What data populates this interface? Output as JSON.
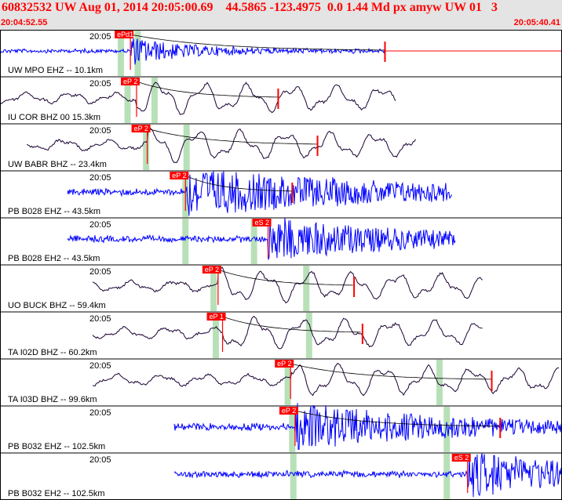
{
  "header": {
    "title": "60832532 UW Aug 01, 2014 20:05:00.69    44.5865 -123.4975  0.0 1.44 Md px amyw UW 01   3",
    "start_time": "20:04:52.55",
    "end_time": "20:05:40.41"
  },
  "colors": {
    "header_bg": "#e4e4e4",
    "pick_red": "#ff0000",
    "window_green": "#b8e0b8",
    "trace_blue": "#0000ff",
    "trace_dark": "#1a0033"
  },
  "channels": [
    {
      "time_label": "20:05",
      "station": "UW MPO EHZ -- 10.1km",
      "trace": "blue",
      "amp": 0.35,
      "start_s": 0.0,
      "end_s": 0.685,
      "picks": [
        {
          "label": "ePd1",
          "pos": 0.232
        }
      ],
      "windows": [
        0.215,
        0.245
      ],
      "coda_end": 0.685,
      "decay": 0.1
    },
    {
      "time_label": "20:05",
      "station": "IU COR BHZ 00 15.3km",
      "trace": "dark",
      "amp": 0.45,
      "start_s": 0.0,
      "end_s": 0.705,
      "picks": [
        {
          "label": "eP 2",
          "pos": 0.243
        }
      ],
      "windows": [
        0.227,
        0.275
      ],
      "coda_end": 0.495,
      "decay": 0.3
    },
    {
      "time_label": "20:05",
      "station": "UW BABR BHZ -- 23.4km",
      "trace": "dark",
      "amp": 0.45,
      "start_s": 0.048,
      "end_s": 0.74,
      "picks": [
        {
          "label": "eP 2",
          "pos": 0.262
        }
      ],
      "windows": [
        0.26,
        0.332
      ],
      "coda_end": 0.565,
      "decay": 0.3
    },
    {
      "time_label": "20:05",
      "station": "PB B028 EHZ -- 43.5km",
      "trace": "blue",
      "amp": 0.6,
      "start_s": 0.12,
      "end_s": 0.805,
      "picks": [
        {
          "label": "eP 2",
          "pos": 0.33
        }
      ],
      "windows": [
        0.33
      ],
      "coda_end": 0.52,
      "decay": 0.35
    },
    {
      "time_label": "20:05",
      "station": "PB B028 EH2 -- 43.5km",
      "trace": "blue",
      "amp": 0.55,
      "start_s": 0.12,
      "end_s": 0.81,
      "picks": [
        {
          "label": "eS 2",
          "pos": 0.477
        }
      ],
      "windows": [
        0.33,
        0.452
      ],
      "coda_end": 0.0,
      "decay": 0.25
    },
    {
      "time_label": "20:05",
      "station": "UO BUCK BHZ -- 59.4km",
      "trace": "dark",
      "amp": 0.45,
      "start_s": 0.165,
      "end_s": 0.86,
      "picks": [
        {
          "label": "eP 2",
          "pos": 0.388
        }
      ],
      "windows": [
        0.38,
        0.545
      ],
      "coda_end": 0.63,
      "decay": 0.3
    },
    {
      "time_label": "20:05",
      "station": "TA I02D BHZ -- 60.2km",
      "trace": "dark",
      "amp": 0.45,
      "start_s": 0.165,
      "end_s": 0.86,
      "picks": [
        {
          "label": "eP 1",
          "pos": 0.396
        }
      ],
      "windows": [
        0.384,
        0.55
      ],
      "coda_end": 0.645,
      "decay": 0.3
    },
    {
      "time_label": "20:05",
      "station": "TA I03D BHZ -- 99.6km",
      "trace": "dark",
      "amp": 0.45,
      "start_s": 0.165,
      "end_s": 0.995,
      "picks": [
        {
          "label": "eP 2",
          "pos": 0.517
        }
      ],
      "windows": [
        0.512,
        0.782
      ],
      "coda_end": 0.875,
      "decay": 0.3
    },
    {
      "time_label": "20:05",
      "station": "PB B032 EHZ -- 102.5km",
      "trace": "blue",
      "amp": 0.6,
      "start_s": 0.31,
      "end_s": 1.0,
      "picks": [
        {
          "label": "eP 2",
          "pos": 0.525
        }
      ],
      "windows": [
        0.52,
        0.795
      ],
      "coda_end": 0.89,
      "decay": 0.25
    },
    {
      "time_label": "20:05",
      "station": "PB B032 EH2 -- 102.5km",
      "trace": "blue",
      "amp": 0.55,
      "start_s": 0.31,
      "end_s": 1.0,
      "picks": [
        {
          "label": "eS 2",
          "pos": 0.832
        }
      ],
      "windows": [
        0.522,
        0.795
      ],
      "coda_end": 0.0,
      "decay": 0.25
    }
  ]
}
